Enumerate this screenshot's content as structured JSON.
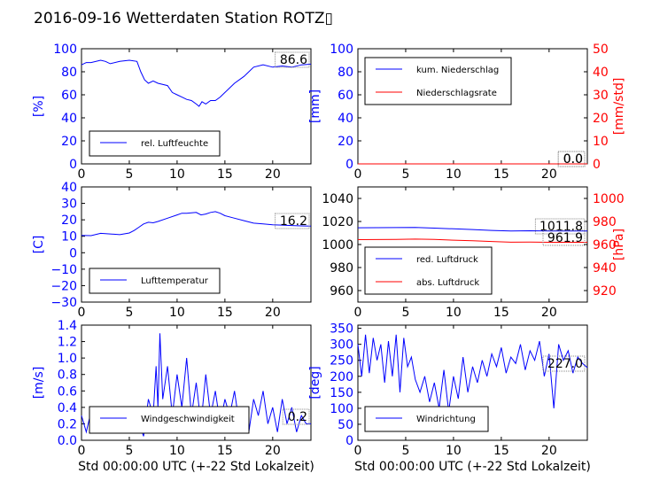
{
  "title": "2016-09-16 Wetterdaten Station ROTZ▯",
  "colors": {
    "blue": "#0000ff",
    "red": "#ff0000",
    "black": "#000000"
  },
  "chart_data": [
    {
      "type": "line",
      "id": "humidity",
      "ylabel": "[%]",
      "xlabel": "",
      "xlim": [
        0,
        24
      ],
      "ylim": [
        0,
        100
      ],
      "xticks": [
        "0",
        "5",
        "10",
        "15",
        "20"
      ],
      "yticks": [
        "0",
        "20",
        "40",
        "60",
        "80",
        "100"
      ],
      "legend": "bottom-left",
      "series": [
        {
          "name": "rel. Luftfeuchte",
          "color": "#0000ff",
          "x": [
            0,
            0.5,
            1,
            2,
            2.5,
            3,
            4,
            5,
            5.8,
            6.2,
            6.6,
            7,
            7.5,
            8,
            9,
            9.5,
            10,
            10.5,
            11,
            11.5,
            12,
            12.3,
            12.6,
            13,
            13.5,
            14,
            14.5,
            15,
            16,
            17,
            17.5,
            18,
            19,
            20,
            21,
            22,
            23,
            24
          ],
          "y": [
            86,
            88,
            88,
            90,
            89,
            87,
            89,
            90,
            89,
            80,
            73,
            70,
            72,
            70,
            68,
            62,
            60,
            58,
            56,
            55,
            52,
            50,
            54,
            52,
            55,
            55,
            58,
            62,
            70,
            76,
            80,
            84,
            86,
            84,
            85,
            84,
            86,
            86.6
          ]
        }
      ],
      "value_label": "86.6"
    },
    {
      "type": "line",
      "id": "precip",
      "ylabel": "[mm]",
      "y2label": "[mm/std]",
      "xlabel": "",
      "xlim": [
        0,
        24
      ],
      "ylim": [
        0,
        100
      ],
      "y2lim": [
        0,
        50
      ],
      "xticks": [
        "0",
        "5",
        "10",
        "15",
        "20"
      ],
      "yticks": [
        "0",
        "20",
        "40",
        "60",
        "80",
        "100"
      ],
      "y2ticks": [
        "0",
        "10",
        "20",
        "30",
        "40",
        "50"
      ],
      "legend": "top-left",
      "series": [
        {
          "name": "kum. Niederschlag",
          "color": "#0000ff",
          "x": [
            0,
            24
          ],
          "y": [
            0,
            0
          ]
        },
        {
          "name": "Niederschlagsrate",
          "color": "#ff0000",
          "x": [
            0,
            24
          ],
          "y": [
            0,
            0
          ]
        }
      ],
      "value_labels": [
        "0.0",
        "0.0"
      ]
    },
    {
      "type": "line",
      "id": "temperature",
      "ylabel": "[C]",
      "xlabel": "",
      "xlim": [
        0,
        24
      ],
      "ylim": [
        -30,
        40
      ],
      "xticks": [
        "0",
        "5",
        "10",
        "15",
        "20"
      ],
      "yticks": [
        "−30",
        "−20",
        "−10",
        "0",
        "10",
        "20",
        "30",
        "40"
      ],
      "legend": "bottom-left",
      "series": [
        {
          "name": "Lufttemperatur",
          "color": "#0000ff",
          "x": [
            0,
            1,
            2,
            3,
            4,
            5,
            5.5,
            6,
            6.5,
            7,
            7.5,
            8,
            9,
            10,
            10.5,
            11,
            12,
            12.5,
            13,
            13.5,
            14,
            14.5,
            15,
            16,
            17,
            18,
            19,
            20,
            21,
            22,
            23,
            24
          ],
          "y": [
            10.5,
            10.4,
            11.8,
            11.4,
            11.0,
            12.0,
            13.5,
            15.5,
            17.5,
            18.5,
            18.2,
            19.0,
            21.0,
            23.0,
            24.0,
            24.0,
            24.5,
            23.0,
            23.5,
            24.5,
            25.0,
            24.0,
            22.5,
            21.0,
            19.5,
            18.0,
            17.5,
            17.0,
            16.8,
            16.5,
            16.3,
            16.2
          ]
        }
      ],
      "value_label": "16.2"
    },
    {
      "type": "line",
      "id": "pressure",
      "ylabel": "",
      "y2label": "[hPa]",
      "xlabel": "",
      "xlim": [
        0,
        24
      ],
      "ylim": [
        950,
        1050
      ],
      "y2lim": [
        910,
        1010
      ],
      "xticks": [
        "0",
        "5",
        "10",
        "15",
        "20"
      ],
      "yticks": [
        "960",
        "980",
        "1000",
        "1020",
        "1040"
      ],
      "y2ticks": [
        "920",
        "940",
        "960",
        "980",
        "1000"
      ],
      "legend": "bottom-left",
      "series": [
        {
          "name": "red. Luftdruck",
          "color": "#0000ff",
          "x": [
            0,
            2,
            4,
            6,
            8,
            10,
            12,
            14,
            16,
            18,
            20,
            22,
            24
          ],
          "y": [
            1014.5,
            1014.6,
            1014.7,
            1014.8,
            1014.2,
            1013.6,
            1013.0,
            1012.2,
            1011.8,
            1011.9,
            1011.7,
            1011.8,
            1011.8
          ]
        },
        {
          "name": "abs. Luftdruck",
          "color": "#ff0000",
          "x": [
            0,
            2,
            4,
            6,
            8,
            10,
            12,
            14,
            16,
            18,
            20,
            22,
            24
          ],
          "y": [
            964.2,
            964.3,
            964.4,
            964.7,
            964.4,
            963.8,
            963.2,
            962.6,
            962.0,
            962.1,
            961.9,
            961.9,
            961.9
          ]
        }
      ],
      "value_labels": [
        "1011.8",
        "961.9"
      ]
    },
    {
      "type": "line",
      "id": "windspeed",
      "ylabel": "[m/s]",
      "xlabel": "Std 00:00:00 UTC (+-22 Std Lokalzeit)",
      "xlim": [
        0,
        24
      ],
      "ylim": [
        0,
        1.4
      ],
      "xticks": [
        "0",
        "5",
        "10",
        "15",
        "20"
      ],
      "yticks": [
        "0.0",
        "0.2",
        "0.4",
        "0.6",
        "0.8",
        "1.0",
        "1.2",
        "1.4"
      ],
      "legend": "bottom-left",
      "series": [
        {
          "name": "Windgeschwindigkeit",
          "color": "#0000ff",
          "x": [
            0,
            0.5,
            1,
            1.5,
            2,
            2.5,
            3,
            3.5,
            4,
            4.5,
            5,
            5.5,
            6,
            6.5,
            7,
            7.5,
            7.8,
            8,
            8.2,
            8.5,
            9,
            9.5,
            10,
            10.5,
            11,
            11.5,
            12,
            12.5,
            13,
            13.5,
            14,
            14.5,
            15,
            15.5,
            16,
            16.5,
            17,
            17.5,
            18,
            18.5,
            19,
            19.5,
            20,
            20.5,
            21,
            21.5,
            22,
            22.5,
            23,
            23.5,
            24
          ],
          "y": [
            0.3,
            0.1,
            0.35,
            0.15,
            0.4,
            0.1,
            0.3,
            0.2,
            0.35,
            0.1,
            0.25,
            0.3,
            0.2,
            0.05,
            0.5,
            0.3,
            0.9,
            0.4,
            1.3,
            0.5,
            0.9,
            0.3,
            0.8,
            0.4,
            1.0,
            0.3,
            0.7,
            0.2,
            0.8,
            0.3,
            0.6,
            0.2,
            0.5,
            0.3,
            0.6,
            0.2,
            0.4,
            0.1,
            0.5,
            0.3,
            0.6,
            0.2,
            0.4,
            0.1,
            0.5,
            0.2,
            0.4,
            0.1,
            0.3,
            0.2,
            0.2
          ]
        }
      ],
      "value_label": "0.2"
    },
    {
      "type": "line",
      "id": "winddirection",
      "ylabel": "[deg]",
      "xlabel": "Std 00:00:00 UTC (+-22 Std Lokalzeit)",
      "xlim": [
        0,
        24
      ],
      "ylim": [
        0,
        360
      ],
      "xticks": [
        "0",
        "5",
        "10",
        "15",
        "20"
      ],
      "yticks": [
        "0",
        "50",
        "100",
        "150",
        "200",
        "250",
        "300",
        "350"
      ],
      "legend": "bottom-left",
      "series": [
        {
          "name": "Windrichtung",
          "color": "#0000ff",
          "x": [
            0,
            0.4,
            0.8,
            1.2,
            1.6,
            2,
            2.4,
            2.8,
            3.2,
            3.6,
            4,
            4.4,
            4.8,
            5.2,
            5.6,
            6,
            6.5,
            7,
            7.5,
            8,
            8.5,
            9,
            9.5,
            10,
            10.5,
            11,
            11.5,
            12,
            12.5,
            13,
            13.5,
            14,
            14.5,
            15,
            15.5,
            16,
            16.5,
            17,
            17.5,
            18,
            18.5,
            19,
            19.5,
            20,
            20.5,
            21,
            21.5,
            22,
            22.5,
            23,
            23.5,
            24
          ],
          "y": [
            300,
            200,
            330,
            210,
            320,
            250,
            300,
            180,
            310,
            200,
            330,
            150,
            320,
            230,
            260,
            190,
            150,
            200,
            120,
            180,
            100,
            220,
            90,
            200,
            130,
            260,
            150,
            230,
            180,
            250,
            200,
            270,
            230,
            290,
            210,
            260,
            240,
            300,
            220,
            280,
            250,
            310,
            200,
            270,
            100,
            300,
            250,
            280,
            210,
            260,
            240,
            227
          ]
        }
      ],
      "value_label": "227.0"
    }
  ]
}
